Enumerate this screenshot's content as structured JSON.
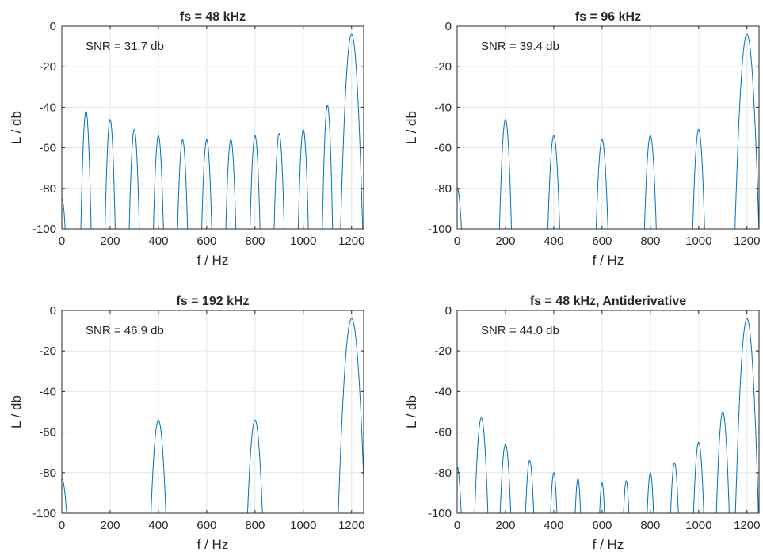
{
  "chart_data": [
    {
      "type": "line",
      "title": "fs = 48 kHz",
      "xlabel": "f / Hz",
      "ylabel": "L / db",
      "xlim": [
        0,
        1250
      ],
      "ylim": [
        -100,
        0
      ],
      "xticks": [
        0,
        200,
        400,
        600,
        800,
        1000,
        1200
      ],
      "yticks": [
        0,
        -20,
        -40,
        -60,
        -80,
        -100
      ],
      "grid": true,
      "annotation": "SNR = 31.7 db",
      "series": [
        {
          "color": "#0072bd",
          "peaks": [
            {
              "x": 0,
              "y": -85,
              "halfwidth": 18
            },
            {
              "x": 100,
              "y": -42,
              "halfwidth": 23
            },
            {
              "x": 200,
              "y": -46,
              "halfwidth": 23
            },
            {
              "x": 300,
              "y": -51,
              "halfwidth": 23
            },
            {
              "x": 400,
              "y": -54,
              "halfwidth": 23
            },
            {
              "x": 500,
              "y": -56,
              "halfwidth": 23
            },
            {
              "x": 600,
              "y": -56,
              "halfwidth": 23
            },
            {
              "x": 700,
              "y": -56,
              "halfwidth": 23
            },
            {
              "x": 800,
              "y": -54,
              "halfwidth": 23
            },
            {
              "x": 900,
              "y": -53,
              "halfwidth": 23
            },
            {
              "x": 1000,
              "y": -51,
              "halfwidth": 23
            },
            {
              "x": 1100,
              "y": -39,
              "halfwidth": 23
            },
            {
              "x": 1200,
              "y": -4,
              "halfwidth": 48
            }
          ]
        }
      ]
    },
    {
      "type": "line",
      "title": "fs = 96 kHz",
      "xlabel": "f / Hz",
      "ylabel": "L / db",
      "xlim": [
        0,
        1250
      ],
      "ylim": [
        -100,
        0
      ],
      "xticks": [
        0,
        200,
        400,
        600,
        800,
        1000,
        1200
      ],
      "yticks": [
        0,
        -20,
        -40,
        -60,
        -80,
        -100
      ],
      "grid": true,
      "annotation": "SNR = 39.4 db",
      "series": [
        {
          "color": "#0072bd",
          "peaks": [
            {
              "x": 0,
              "y": -80,
              "halfwidth": 22
            },
            {
              "x": 200,
              "y": -46,
              "halfwidth": 27
            },
            {
              "x": 400,
              "y": -54,
              "halfwidth": 27
            },
            {
              "x": 600,
              "y": -56,
              "halfwidth": 27
            },
            {
              "x": 800,
              "y": -54,
              "halfwidth": 27
            },
            {
              "x": 1000,
              "y": -51,
              "halfwidth": 27
            },
            {
              "x": 1200,
              "y": -4,
              "halfwidth": 52
            }
          ]
        }
      ]
    },
    {
      "type": "line",
      "title": "fs = 192 kHz",
      "xlabel": "f / Hz",
      "ylabel": "L / db",
      "xlim": [
        0,
        1250
      ],
      "ylim": [
        -100,
        0
      ],
      "xticks": [
        0,
        200,
        400,
        600,
        800,
        1000,
        1200
      ],
      "yticks": [
        0,
        -20,
        -40,
        -60,
        -80,
        -100
      ],
      "grid": true,
      "annotation": "SNR = 46.9 db",
      "series": [
        {
          "color": "#0072bd",
          "peaks": [
            {
              "x": 0,
              "y": -83,
              "halfwidth": 25
            },
            {
              "x": 400,
              "y": -54,
              "halfwidth": 34
            },
            {
              "x": 800,
              "y": -54,
              "halfwidth": 34
            },
            {
              "x": 1200,
              "y": -4,
              "halfwidth": 58
            }
          ]
        }
      ]
    },
    {
      "type": "line",
      "title": "fs = 48 kHz, Antiderivative",
      "xlabel": "f / Hz",
      "ylabel": "L / db",
      "xlim": [
        0,
        1250
      ],
      "ylim": [
        -100,
        0
      ],
      "xticks": [
        0,
        200,
        400,
        600,
        800,
        1000,
        1200
      ],
      "yticks": [
        0,
        -20,
        -40,
        -60,
        -80,
        -100
      ],
      "grid": true,
      "annotation": "SNR = 44.0 db",
      "series": [
        {
          "color": "#0072bd",
          "peaks": [
            {
              "x": 0,
              "y": -77,
              "halfwidth": 20
            },
            {
              "x": 100,
              "y": -53,
              "halfwidth": 30
            },
            {
              "x": 200,
              "y": -66,
              "halfwidth": 25
            },
            {
              "x": 300,
              "y": -74,
              "halfwidth": 20
            },
            {
              "x": 400,
              "y": -80,
              "halfwidth": 16
            },
            {
              "x": 500,
              "y": -83,
              "halfwidth": 14
            },
            {
              "x": 600,
              "y": -85,
              "halfwidth": 13
            },
            {
              "x": 700,
              "y": -84,
              "halfwidth": 14
            },
            {
              "x": 800,
              "y": -80,
              "halfwidth": 16
            },
            {
              "x": 900,
              "y": -75,
              "halfwidth": 19
            },
            {
              "x": 1000,
              "y": -65,
              "halfwidth": 24
            },
            {
              "x": 1100,
              "y": -50,
              "halfwidth": 29
            },
            {
              "x": 1200,
              "y": -4,
              "halfwidth": 50
            }
          ]
        }
      ]
    }
  ]
}
